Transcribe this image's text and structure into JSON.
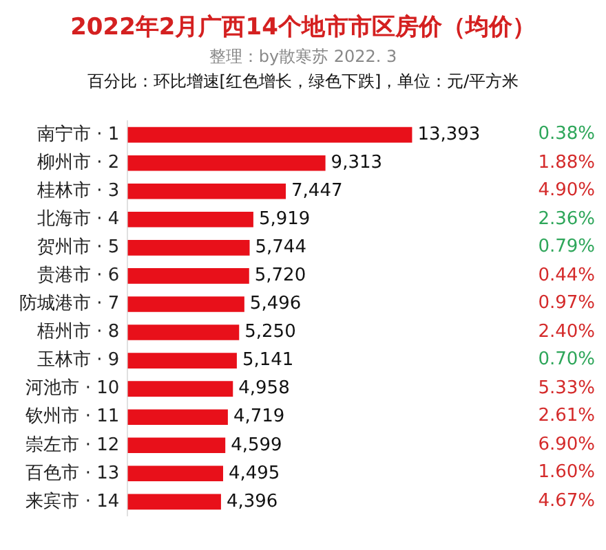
{
  "chart_data": [
    {
      "type": "bar",
      "orientation": "horizontal",
      "title": "2022年2月广西14个地市市区房价（均价）",
      "subtitle": "整理：by散寒苏 2022. 3",
      "categories": [
        "南宁市 · 1",
        "柳州市 · 2",
        "桂林市 · 3",
        "北海市 · 4",
        "贺州市 · 5",
        "贵港市 · 6",
        "防城港市 · 7",
        "梧州市 · 8",
        "玉林市 · 9",
        "河池市 · 10",
        "钦州市 · 11",
        "崇左市 · 12",
        "百色市 · 13",
        "来宾市 · 14"
      ],
      "values": [
        13393,
        9313,
        7447,
        5919,
        5744,
        5720,
        5496,
        5250,
        5141,
        4958,
        4719,
        4599,
        4495,
        4396
      ],
      "value_labels": [
        "13,393",
        "9,313",
        "7,447",
        "5,919",
        "5,744",
        "5,720",
        "5,496",
        "5,250",
        "5,141",
        "4,958",
        "4,719",
        "4,599",
        "4,495",
        "4,396"
      ],
      "color": "#e8101a",
      "grid": false,
      "annotations": [
        "百分比：环比增速[红色增长，绿色下跌]，单位：元/平方米"
      ]
    },
    {
      "type": "other",
      "value_labels": [
        "0.38%",
        "1.88%",
        "4.90%",
        "2.36%",
        "0.79%",
        "0.44%",
        "0.97%",
        "2.40%",
        "0.70%",
        "5.33%",
        "2.61%",
        "6.90%",
        "1.60%",
        "4.67%"
      ],
      "colors": [
        "#2ea65a",
        "#d42a2a",
        "#d42a2a",
        "#2ea65a",
        "#2ea65a",
        "#d42a2a",
        "#d42a2a",
        "#d42a2a",
        "#2ea65a",
        "#d42a2a",
        "#d42a2a",
        "#d42a2a",
        "#d42a2a",
        "#d42a2a"
      ]
    }
  ]
}
